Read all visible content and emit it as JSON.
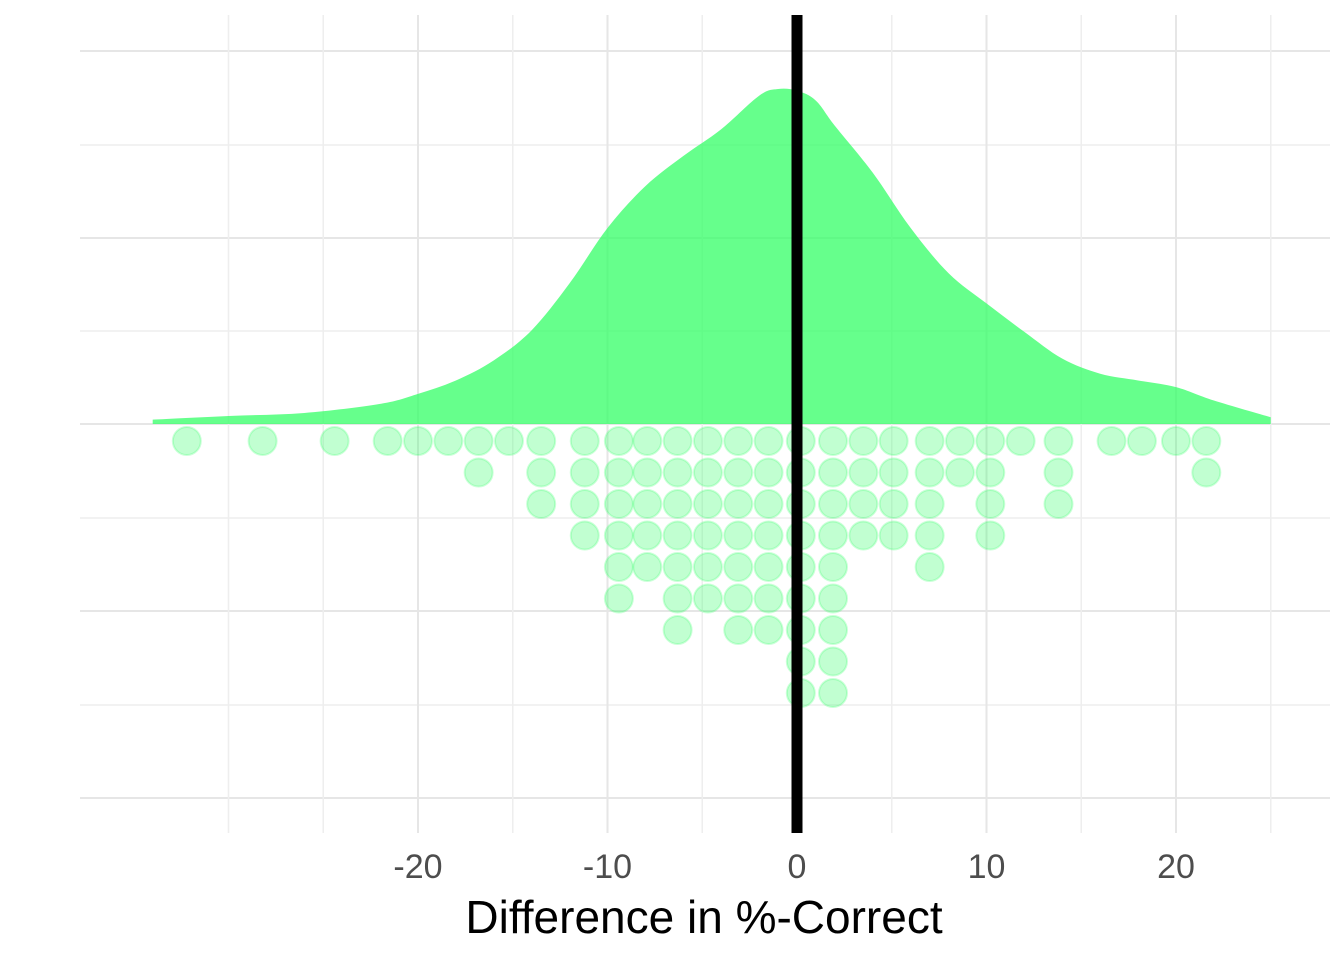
{
  "chart_data": {
    "type": "raincloud",
    "title": "",
    "xlabel": "Difference in %-Correct",
    "ylabel": "",
    "xlim": [
      -35,
      28
    ],
    "x_ticks": [
      -20,
      -10,
      0,
      10,
      20
    ],
    "x_tick_labels": [
      "-20",
      "-10",
      "0",
      "10",
      "20"
    ],
    "x_minor_gridlines": [
      -30,
      -25,
      -15,
      -5,
      5,
      15,
      25
    ],
    "grid": true,
    "reference_line_x": 0,
    "density": {
      "x": [
        -34,
        -30,
        -26,
        -22,
        -20,
        -18,
        -16,
        -14,
        -12,
        -10,
        -8,
        -6,
        -4,
        -2,
        -1,
        0,
        1,
        2,
        4,
        6,
        8,
        10,
        12,
        14,
        16,
        18,
        20,
        22,
        25
      ],
      "y": [
        0.026,
        0.048,
        0.066,
        0.12,
        0.18,
        0.26,
        0.38,
        0.56,
        0.84,
        1.17,
        1.42,
        1.6,
        1.76,
        1.96,
        2.0,
        1.99,
        1.93,
        1.78,
        1.5,
        1.17,
        0.9,
        0.72,
        0.55,
        0.39,
        0.3,
        0.26,
        0.22,
        0.14,
        0.04
      ],
      "color": "#33ff66"
    },
    "dots": {
      "color": "#33ff66",
      "bins_x": [
        -32.2,
        -28.2,
        -24.4,
        -21.6,
        -20.0,
        -18.4,
        -16.8,
        -15.2,
        -13.5,
        -11.2,
        -9.4,
        -7.9,
        -6.3,
        -4.7,
        -3.1,
        -1.5,
        0.2,
        1.9,
        3.5,
        5.1,
        7.0,
        8.6,
        10.2,
        11.8,
        13.8,
        16.6,
        18.2,
        20.0,
        21.6
      ],
      "counts": [
        1,
        1,
        1,
        1,
        1,
        1,
        2,
        1,
        3,
        4,
        6,
        5,
        7,
        6,
        7,
        7,
        9,
        9,
        4,
        4,
        5,
        2,
        4,
        1,
        3,
        1,
        1,
        1,
        2
      ]
    }
  }
}
